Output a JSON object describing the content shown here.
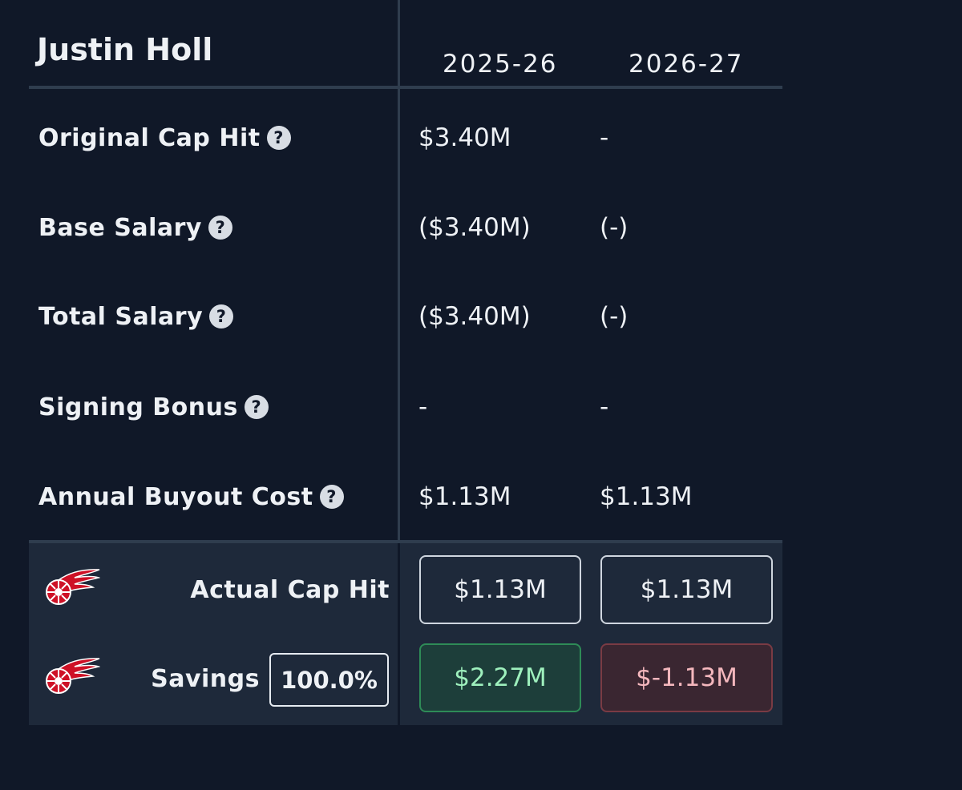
{
  "player": {
    "name": "Justin Holl"
  },
  "seasons": [
    "2025-26",
    "2026-27"
  ],
  "rows": [
    {
      "label": "Original Cap Hit",
      "help_icon": "question-circle-icon",
      "values": [
        "$3.40M",
        "-"
      ]
    },
    {
      "label": "Base Salary",
      "help_icon": "question-circle-icon",
      "values": [
        "($3.40M)",
        "(-)"
      ]
    },
    {
      "label": "Total Salary",
      "help_icon": "question-circle-icon",
      "values": [
        "($3.40M)",
        "(-)"
      ]
    },
    {
      "label": "Signing Bonus",
      "help_icon": "question-circle-icon",
      "values": [
        "-",
        "-"
      ]
    },
    {
      "label": "Annual Buyout Cost",
      "help_icon": "question-circle-icon",
      "values": [
        "$1.13M",
        "$1.13M"
      ]
    }
  ],
  "help_glyph": "?",
  "summary": {
    "team_logo": "red-wings-logo-icon",
    "actual_cap_hit": {
      "label": "Actual Cap Hit",
      "values": [
        "$1.13M",
        "$1.13M"
      ]
    },
    "savings": {
      "label": "Savings",
      "percent": "100.0%",
      "values": [
        "$2.27M",
        "$-1.13M"
      ]
    }
  },
  "colors": {
    "background": "#101828",
    "summary_background": "#1e293a",
    "positive": "#9ef0bd",
    "negative": "#f4b7bd",
    "team_red": "#ce1126"
  }
}
